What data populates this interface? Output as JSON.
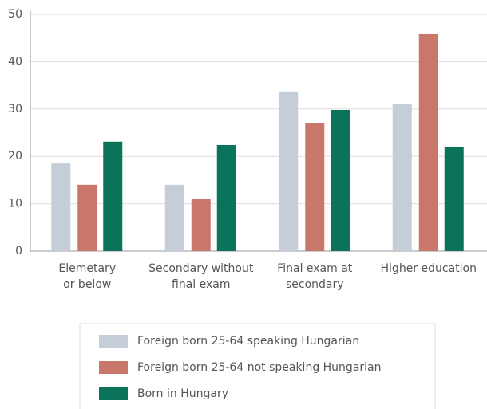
{
  "chart_data": {
    "type": "bar",
    "categories": [
      "Elemetary\nor below",
      "Secondary without\nfinal exam",
      "Final exam at\nsecondary",
      "Higher education"
    ],
    "series": [
      {
        "name": "Foreign born 25-64 speaking Hungarian",
        "color": "#c5ced8",
        "values": [
          18.5,
          14.0,
          33.7,
          31.1
        ]
      },
      {
        "name": "Foreign born 25-64 not speaking Hungarian",
        "color": "#c8776a",
        "values": [
          14.0,
          11.1,
          27.1,
          45.8
        ]
      },
      {
        "name": "Born in Hungary",
        "color": "#0b7359",
        "values": [
          23.1,
          22.4,
          29.8,
          21.9
        ]
      }
    ],
    "ylim": [
      0,
      50
    ],
    "yticks": [
      0,
      10,
      20,
      30,
      40,
      50
    ],
    "grid": true
  }
}
